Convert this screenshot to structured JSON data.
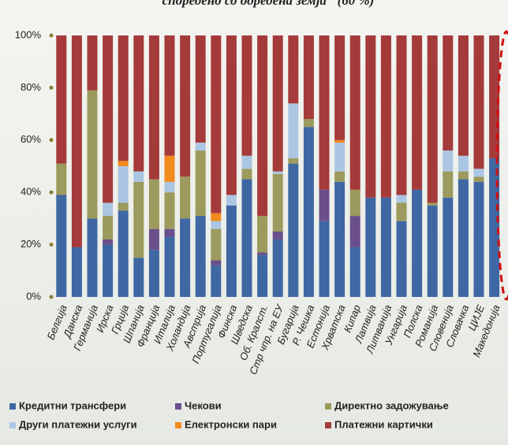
{
  "chart_data": {
    "type": "stacked_bar",
    "title": "споредено со одредена земја\" (60 %)",
    "categories": [
      "Белгија",
      "Данска",
      "Германија",
      "Ирска",
      "Грција",
      "Шпанија",
      "Франција",
      "Италија",
      "Холандија",
      "Австрија",
      "Португалија",
      "Финска",
      "Шведска",
      "Об. Кралст.",
      "Стр чпр. на ЕУ",
      "Бугарија",
      "Р. Чешка",
      "Естонија",
      "Хрватска",
      "Кипар",
      "Латвија",
      "Литванија",
      "Унгарија",
      "Полска",
      "Романија",
      "Словенија",
      "Словачка",
      "ЦИЈЕ",
      "Македонија"
    ],
    "series": [
      {
        "name": "Кредитни трансфери",
        "color": "#3f67a3",
        "values": [
          39,
          19,
          30,
          20,
          33,
          15,
          18,
          23,
          30,
          31,
          12,
          35,
          45,
          16,
          22,
          51,
          65,
          29,
          44,
          19,
          38,
          38,
          29,
          41,
          35,
          38,
          45,
          44,
          53
        ]
      },
      {
        "name": "Чекови",
        "color": "#6a4f8c",
        "values": [
          0,
          0,
          0,
          2,
          0,
          0,
          8,
          3,
          0,
          0,
          2,
          0,
          0,
          1,
          3,
          0,
          0,
          12,
          0,
          12,
          0,
          0,
          0,
          0,
          0,
          0,
          0,
          0,
          0
        ]
      },
      {
        "name": "Директно задожување",
        "color": "#9c9a5c",
        "values": [
          12,
          0,
          49,
          9,
          3,
          29,
          19,
          14,
          16,
          25,
          12,
          0,
          4,
          14,
          22,
          2,
          3,
          0,
          4,
          10,
          0,
          0,
          7,
          0,
          1,
          10,
          3,
          2,
          0
        ]
      },
      {
        "name": "Други платежни услуги",
        "color": "#abc6e3",
        "values": [
          0,
          0,
          0,
          5,
          14,
          4,
          0,
          4,
          0,
          3,
          3,
          4,
          5,
          0,
          1,
          21,
          0,
          0,
          11,
          0,
          0,
          0,
          3,
          0,
          0,
          8,
          6,
          3,
          0
        ]
      },
      {
        "name": "Електронски пари",
        "color": "#f28a1e",
        "values": [
          0,
          0,
          0,
          0,
          2,
          0,
          0,
          10,
          0,
          0,
          3,
          0,
          0,
          0,
          0,
          0,
          0,
          0,
          1,
          0,
          0,
          0,
          0,
          0,
          0,
          0,
          0,
          0,
          0
        ]
      },
      {
        "name": "Платежни картички",
        "color": "#a53a3a",
        "values": [
          49,
          81,
          21,
          64,
          48,
          52,
          55,
          46,
          54,
          41,
          68,
          61,
          46,
          69,
          52,
          26,
          32,
          59,
          40,
          59,
          62,
          62,
          61,
          59,
          64,
          44,
          46,
          51,
          47
        ]
      }
    ],
    "ylim": [
      0,
      100
    ],
    "yticks": [
      {
        "value": 0,
        "label": "0%"
      },
      {
        "value": 20,
        "label": "20%"
      },
      {
        "value": 40,
        "label": "40%"
      },
      {
        "value": 60,
        "label": "60%"
      },
      {
        "value": 80,
        "label": "80%"
      },
      {
        "value": 100,
        "label": "100%"
      }
    ]
  }
}
